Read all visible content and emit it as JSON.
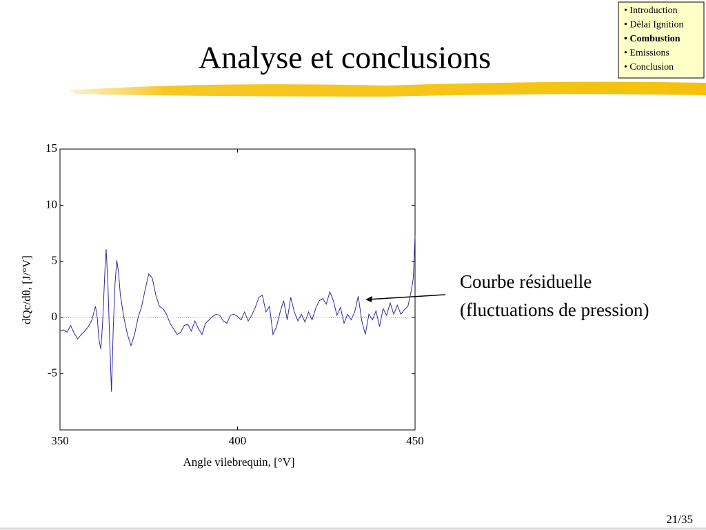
{
  "slide": {
    "title": "Analyse et conclusions",
    "nav": [
      "• Introduction",
      "• Délai Ignition",
      "• Combustion",
      "• Emissions",
      "• Conclusion"
    ],
    "page": "21/35"
  },
  "chart_data": {
    "type": "line",
    "xlabel": "Angle vilebrequin, [°V]",
    "ylabel": "dQc/dθ, [J/°V]",
    "annotation": [
      "Courbe résiduelle",
      "(fluctuations de pression)"
    ],
    "xlim": [
      350,
      450
    ],
    "ylim": [
      -10,
      15
    ],
    "xticks": [
      350,
      400,
      450
    ],
    "yticks": [
      15,
      10,
      5,
      0,
      -5
    ],
    "zero_line": true,
    "series": [
      {
        "color": "#2a2aa0",
        "x": [
          350,
          351,
          352,
          353,
          354,
          355,
          356,
          357,
          358,
          359,
          360,
          360.5,
          361,
          361.5,
          362,
          362.7,
          363,
          363.5,
          364,
          364.5,
          365,
          365.5,
          366,
          366.5,
          367,
          368,
          369,
          370,
          371,
          372,
          373,
          374,
          375,
          376,
          377,
          378,
          379,
          380,
          381,
          382,
          383,
          384,
          385,
          386,
          387,
          388,
          389,
          390,
          391,
          392,
          393,
          394,
          395,
          396,
          397,
          398,
          399,
          400,
          401,
          402,
          403,
          404,
          405,
          406,
          407,
          408,
          409,
          410,
          411,
          412,
          413,
          414,
          415,
          416,
          417,
          418,
          419,
          420,
          421,
          422,
          423,
          424,
          425,
          426,
          427,
          428,
          429,
          430,
          431,
          432,
          433,
          434,
          435,
          436,
          437,
          438,
          439,
          440,
          441,
          442,
          443,
          444,
          445,
          446,
          447,
          448,
          449,
          449.5,
          450
        ],
        "values": [
          -1.2,
          -1.1,
          -1.3,
          -0.7,
          -1.4,
          -1.9,
          -1.5,
          -1.2,
          -0.8,
          -0.2,
          1.0,
          0,
          -2.0,
          -2.8,
          -0.5,
          4.5,
          6.1,
          3,
          -2,
          -6.6,
          -1,
          3,
          5.1,
          4,
          2,
          0,
          -1.5,
          -2.5,
          -1.5,
          0,
          1.0,
          2.5,
          3.9,
          3.5,
          2,
          1,
          0.8,
          0.3,
          -0.5,
          -1,
          -1.5,
          -1.3,
          -0.7,
          -0.6,
          -1.2,
          -0.3,
          -1,
          -1.5,
          -0.5,
          -0.2,
          0.1,
          0.3,
          0.2,
          -0.3,
          -0.5,
          0.2,
          0.3,
          0.1,
          -0.2,
          0.5,
          -0.3,
          0.2,
          0.9,
          1.8,
          2.0,
          0.5,
          1.0,
          -1.5,
          -0.8,
          0.5,
          1.5,
          -0.2,
          1.8,
          0.5,
          -0.3,
          0.3,
          -0.4,
          0.5,
          -0.2,
          0.8,
          1.5,
          1.7,
          1.2,
          2.3,
          1.5,
          0.2,
          0.9,
          -0.5,
          0.3,
          -0.2,
          0.5,
          1.9,
          -0.3,
          -1.5,
          0.3,
          -0.2,
          0.6,
          -0.8,
          0.8,
          0.2,
          1.3,
          0.3,
          1.1,
          0.3,
          0.7,
          1.0,
          2.5,
          3.5,
          7.3
        ]
      }
    ]
  }
}
